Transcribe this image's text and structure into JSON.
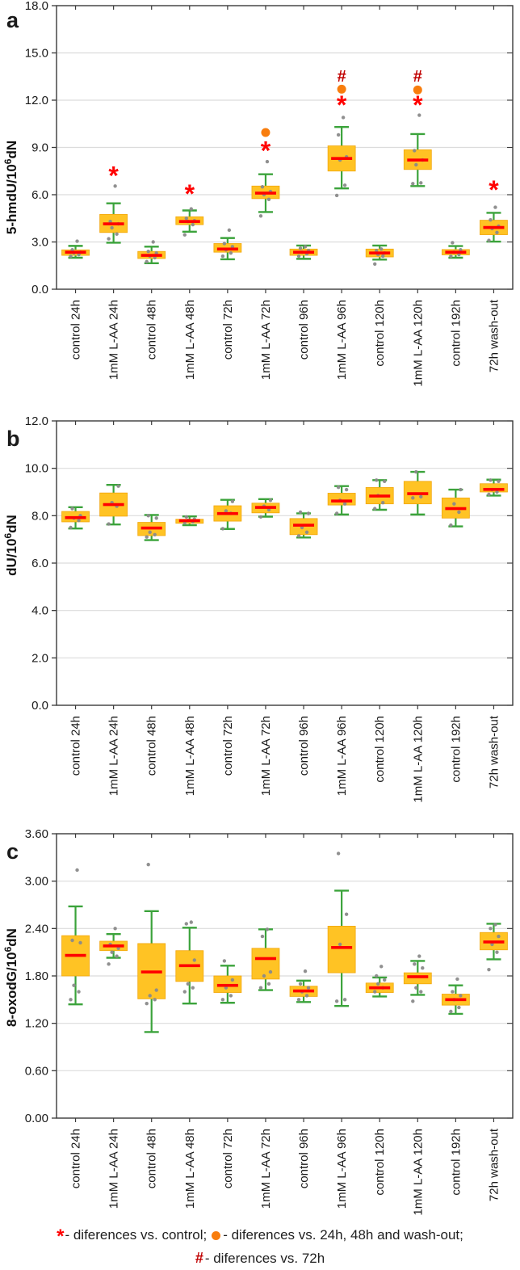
{
  "colors": {
    "box_fill": "#FFC324",
    "box_stroke": "#F2A70D",
    "whisker": "#3BA33B",
    "median": "#FF0000",
    "point": "#8A8A8A",
    "star": "#FF0000",
    "dot": "#F87D0D",
    "hash": "#C00000",
    "gridline": "#DCDCDC",
    "frame": "#3A3A3A",
    "text": "#1A1A1A"
  },
  "categories": [
    "control 24h",
    "1mM L-AA 24h",
    "control 48h",
    "1mM L-AA 48h",
    "control 72h",
    "1mM L-AA 72h",
    "control 96h",
    "1mM L-AA 96h",
    "control 120h",
    "1mM L-AA 120h",
    "control 192h",
    "72h wash-out"
  ],
  "legend": {
    "star_symbol": "*",
    "line1_part1": "- diferences vs. control;",
    "line1_part2": "- diferences vs. 24h, 48h and wash-out;",
    "hash_symbol": "#",
    "line2_text": "- diferences vs. 72h"
  },
  "chart_data": [
    {
      "type": "box",
      "panel_label": "a",
      "ylabel_base": "5-hmdU/10",
      "ylabel_sup": "6",
      "ylabel_rest": "dN",
      "ylim": [
        0,
        18
      ],
      "grid": true,
      "yticks": [
        {
          "label": "18.0",
          "value": 18
        },
        {
          "label": "15.0",
          "value": 15
        },
        {
          "label": "12.0",
          "value": 12
        },
        {
          "label": "9.0",
          "value": 9
        },
        {
          "label": "6.0",
          "value": 6
        },
        {
          "label": "3.0",
          "value": 3
        },
        {
          "label": "0.0",
          "value": 0
        }
      ],
      "boxes": [
        {
          "category": "control 24h",
          "whisker_low": 2.0,
          "q1": 2.15,
          "median": 2.35,
          "q3": 2.5,
          "whisker_high": 2.75,
          "points": [
            2.1,
            2.2,
            2.3,
            2.35,
            2.5,
            3.05
          ],
          "annotations": []
        },
        {
          "category": "1mM L-AA 24h",
          "whisker_low": 2.95,
          "q1": 3.6,
          "median": 4.15,
          "q3": 4.75,
          "whisker_high": 5.45,
          "points": [
            3.2,
            3.5,
            3.9,
            4.15,
            4.3,
            6.55
          ],
          "annotations": [
            {
              "symbol": "star",
              "value": 7.2
            }
          ]
        },
        {
          "category": "control 48h",
          "whisker_low": 1.65,
          "q1": 1.95,
          "median": 2.15,
          "q3": 2.4,
          "whisker_high": 2.7,
          "points": [
            1.75,
            2.0,
            2.1,
            2.3,
            2.4,
            3.0
          ],
          "annotations": []
        },
        {
          "category": "1mM L-AA 48h",
          "whisker_low": 3.65,
          "q1": 4.1,
          "median": 4.3,
          "q3": 4.6,
          "whisker_high": 5.0,
          "points": [
            3.45,
            4.1,
            4.3,
            4.35,
            4.5,
            5.1
          ],
          "annotations": [
            {
              "symbol": "star",
              "value": 6.05
            }
          ]
        },
        {
          "category": "control 72h",
          "whisker_low": 1.9,
          "q1": 2.35,
          "median": 2.55,
          "q3": 2.9,
          "whisker_high": 3.25,
          "points": [
            2.1,
            2.3,
            2.5,
            2.7,
            2.9,
            3.75
          ],
          "annotations": []
        },
        {
          "category": "1mM L-AA 72h",
          "whisker_low": 4.9,
          "q1": 5.75,
          "median": 6.1,
          "q3": 6.55,
          "whisker_high": 7.3,
          "points": [
            4.65,
            5.7,
            6.0,
            6.2,
            6.5,
            8.1
          ],
          "annotations": [
            {
              "symbol": "star",
              "value": 8.8
            },
            {
              "symbol": "dot",
              "value": 9.95
            }
          ]
        },
        {
          "category": "control 96h",
          "whisker_low": 1.93,
          "q1": 2.15,
          "median": 2.35,
          "q3": 2.55,
          "whisker_high": 2.77,
          "points": [
            2.1,
            2.25,
            2.35,
            2.45,
            2.6,
            2.7
          ],
          "annotations": []
        },
        {
          "category": "1mM L-AA 96h",
          "whisker_low": 6.4,
          "q1": 7.5,
          "median": 8.3,
          "q3": 9.1,
          "whisker_high": 10.3,
          "points": [
            5.95,
            6.6,
            8.2,
            8.4,
            9.8,
            10.9
          ],
          "annotations": [
            {
              "symbol": "star",
              "value": 11.7
            },
            {
              "symbol": "dot",
              "value": 12.7
            },
            {
              "symbol": "hash",
              "value": 13.55
            }
          ]
        },
        {
          "category": "control 120h",
          "whisker_low": 1.88,
          "q1": 2.05,
          "median": 2.3,
          "q3": 2.55,
          "whisker_high": 2.77,
          "points": [
            1.6,
            2.1,
            2.2,
            2.3,
            2.45,
            2.55
          ],
          "annotations": []
        },
        {
          "category": "1mM L-AA 120h",
          "whisker_low": 6.55,
          "q1": 7.6,
          "median": 8.2,
          "q3": 8.85,
          "whisker_high": 9.85,
          "points": [
            6.7,
            6.75,
            7.9,
            8.2,
            8.8,
            11.05
          ],
          "annotations": [
            {
              "symbol": "star",
              "value": 11.7
            },
            {
              "symbol": "dot",
              "value": 12.65
            },
            {
              "symbol": "hash",
              "value": 13.55
            }
          ]
        },
        {
          "category": "control 192h",
          "whisker_low": 2.0,
          "q1": 2.18,
          "median": 2.35,
          "q3": 2.52,
          "whisker_high": 2.74,
          "points": [
            2.1,
            2.2,
            2.35,
            2.5,
            2.95
          ],
          "annotations": []
        },
        {
          "category": "72h wash-out",
          "whisker_low": 3.02,
          "q1": 3.46,
          "median": 3.92,
          "q3": 4.38,
          "whisker_high": 4.85,
          "points": [
            3.1,
            3.6,
            3.85,
            4.0,
            4.4,
            5.2
          ],
          "annotations": [
            {
              "symbol": "star",
              "value": 6.3
            }
          ]
        }
      ]
    },
    {
      "type": "box",
      "panel_label": "b",
      "ylabel_base": "dU/10",
      "ylabel_sup": "6",
      "ylabel_rest": "dN",
      "ylim": [
        0,
        12
      ],
      "grid": true,
      "yticks": [
        {
          "label": "12.0",
          "value": 12
        },
        {
          "label": "10.0",
          "value": 10
        },
        {
          "label": "8.0",
          "value": 8
        },
        {
          "label": "6.0",
          "value": 6
        },
        {
          "label": "4.0",
          "value": 4
        },
        {
          "label": "2.0",
          "value": 2
        },
        {
          "label": "0.0",
          "value": 0
        }
      ],
      "boxes": [
        {
          "category": "control 24h",
          "whisker_low": 7.46,
          "q1": 7.74,
          "median": 7.92,
          "q3": 8.18,
          "whisker_high": 8.36,
          "points": [
            7.5,
            7.8,
            7.9,
            8.0,
            8.3
          ],
          "annotations": []
        },
        {
          "category": "1mM L-AA 24h",
          "whisker_low": 7.63,
          "q1": 7.98,
          "median": 8.47,
          "q3": 8.96,
          "whisker_high": 9.3,
          "points": [
            7.65,
            8.4,
            8.55,
            9.25
          ],
          "annotations": []
        },
        {
          "category": "control 48h",
          "whisker_low": 6.97,
          "q1": 7.16,
          "median": 7.48,
          "q3": 7.72,
          "whisker_high": 8.03,
          "points": [
            7.1,
            7.2,
            7.3,
            7.9,
            8.0
          ],
          "annotations": []
        },
        {
          "category": "1mM L-AA 48h",
          "whisker_low": 7.6,
          "q1": 7.68,
          "median": 7.79,
          "q3": 7.85,
          "whisker_high": 7.97,
          "points": [
            7.7,
            7.75,
            7.8,
            7.85,
            7.95
          ],
          "annotations": []
        },
        {
          "category": "control 72h",
          "whisker_low": 7.44,
          "q1": 7.77,
          "median": 8.09,
          "q3": 8.42,
          "whisker_high": 8.67,
          "points": [
            7.45,
            8.1,
            8.2,
            8.6
          ],
          "annotations": []
        },
        {
          "category": "1mM L-AA 72h",
          "whisker_low": 7.96,
          "q1": 8.12,
          "median": 8.35,
          "q3": 8.53,
          "whisker_high": 8.7,
          "points": [
            7.95,
            8.25,
            8.4,
            8.65
          ],
          "annotations": []
        },
        {
          "category": "control 96h",
          "whisker_low": 7.08,
          "q1": 7.2,
          "median": 7.6,
          "q3": 7.88,
          "whisker_high": 8.1,
          "points": [
            7.15,
            7.3,
            7.5,
            8.1,
            8.15
          ],
          "annotations": []
        },
        {
          "category": "1mM L-AA 96h",
          "whisker_low": 8.05,
          "q1": 8.45,
          "median": 8.62,
          "q3": 8.95,
          "whisker_high": 9.25,
          "points": [
            8.1,
            8.5,
            8.65,
            9.1,
            9.2
          ],
          "annotations": []
        },
        {
          "category": "control 120h",
          "whisker_low": 8.25,
          "q1": 8.5,
          "median": 8.83,
          "q3": 9.19,
          "whisker_high": 9.5,
          "points": [
            8.3,
            8.55,
            8.85,
            9.45,
            9.5
          ],
          "annotations": []
        },
        {
          "category": "1mM L-AA 120h",
          "whisker_low": 8.05,
          "q1": 8.5,
          "median": 8.93,
          "q3": 9.45,
          "whisker_high": 9.85,
          "points": [
            8.75,
            8.8,
            9.85
          ],
          "annotations": []
        },
        {
          "category": "control 192h",
          "whisker_low": 7.55,
          "q1": 7.9,
          "median": 8.3,
          "q3": 8.75,
          "whisker_high": 9.1,
          "points": [
            7.6,
            8.15,
            8.5,
            9.1
          ],
          "annotations": []
        },
        {
          "category": "72h wash-out",
          "whisker_low": 8.85,
          "q1": 9.0,
          "median": 9.11,
          "q3": 9.35,
          "whisker_high": 9.52,
          "points": [
            8.9,
            9.0,
            9.1,
            9.45,
            9.5
          ],
          "annotations": []
        }
      ]
    },
    {
      "type": "box",
      "panel_label": "c",
      "ylabel_base": "8-oxodG/10",
      "ylabel_sup": "6",
      "ylabel_rest": "dN",
      "ylim": [
        0,
        3.6
      ],
      "grid": true,
      "yticks": [
        {
          "label": "3.60",
          "value": 3.6
        },
        {
          "label": "3.00",
          "value": 3.0
        },
        {
          "label": "2.40",
          "value": 2.4
        },
        {
          "label": "1.80",
          "value": 1.8
        },
        {
          "label": "1.20",
          "value": 1.2
        },
        {
          "label": "0.60",
          "value": 0.6
        },
        {
          "label": "0.00",
          "value": 0
        }
      ],
      "boxes": [
        {
          "category": "control 24h",
          "whisker_low": 1.44,
          "q1": 1.8,
          "median": 2.06,
          "q3": 2.31,
          "whisker_high": 2.68,
          "points": [
            1.5,
            1.6,
            1.68,
            2.22,
            2.25,
            3.14
          ],
          "annotations": []
        },
        {
          "category": "1mM L-AA 24h",
          "whisker_low": 2.03,
          "q1": 2.12,
          "median": 2.18,
          "q3": 2.24,
          "whisker_high": 2.33,
          "points": [
            1.95,
            2.05,
            2.1,
            2.15,
            2.2,
            2.4
          ],
          "annotations": []
        },
        {
          "category": "control 48h",
          "whisker_low": 1.09,
          "q1": 1.51,
          "median": 1.85,
          "q3": 2.21,
          "whisker_high": 2.62,
          "points": [
            1.45,
            1.5,
            1.55,
            1.62,
            3.21
          ],
          "annotations": []
        },
        {
          "category": "1mM L-AA 48h",
          "whisker_low": 1.45,
          "q1": 1.73,
          "median": 1.93,
          "q3": 2.12,
          "whisker_high": 2.41,
          "points": [
            1.6,
            1.65,
            1.7,
            2.0,
            2.46,
            2.48
          ],
          "annotations": []
        },
        {
          "category": "control 72h",
          "whisker_low": 1.46,
          "q1": 1.59,
          "median": 1.68,
          "q3": 1.8,
          "whisker_high": 1.93,
          "points": [
            1.5,
            1.55,
            1.65,
            1.75,
            1.99
          ],
          "annotations": []
        },
        {
          "category": "1mM L-AA 72h",
          "whisker_low": 1.62,
          "q1": 1.76,
          "median": 2.02,
          "q3": 2.15,
          "whisker_high": 2.39,
          "points": [
            1.65,
            1.7,
            1.8,
            1.85,
            2.3,
            2.39
          ],
          "annotations": []
        },
        {
          "category": "control 96h",
          "whisker_low": 1.47,
          "q1": 1.54,
          "median": 1.61,
          "q3": 1.67,
          "whisker_high": 1.74,
          "points": [
            1.5,
            1.55,
            1.6,
            1.65,
            1.7,
            1.86
          ],
          "annotations": []
        },
        {
          "category": "1mM L-AA 96h",
          "whisker_low": 1.42,
          "q1": 1.84,
          "median": 2.16,
          "q3": 2.43,
          "whisker_high": 2.88,
          "points": [
            1.48,
            1.5,
            2.2,
            2.58,
            3.35
          ],
          "annotations": []
        },
        {
          "category": "control 120h",
          "whisker_low": 1.54,
          "q1": 1.59,
          "median": 1.65,
          "q3": 1.71,
          "whisker_high": 1.78,
          "points": [
            1.6,
            1.65,
            1.7,
            1.75,
            1.8,
            1.92
          ],
          "annotations": []
        },
        {
          "category": "1mM L-AA 120h",
          "whisker_low": 1.56,
          "q1": 1.7,
          "median": 1.79,
          "q3": 1.84,
          "whisker_high": 1.99,
          "points": [
            1.48,
            1.6,
            1.65,
            1.9,
            1.95,
            2.05
          ],
          "annotations": []
        },
        {
          "category": "control 192h",
          "whisker_low": 1.32,
          "q1": 1.43,
          "median": 1.5,
          "q3": 1.57,
          "whisker_high": 1.68,
          "points": [
            1.35,
            1.4,
            1.5,
            1.55,
            1.6,
            1.76
          ],
          "annotations": []
        },
        {
          "category": "72h wash-out",
          "whisker_low": 2.01,
          "q1": 2.13,
          "median": 2.23,
          "q3": 2.35,
          "whisker_high": 2.46,
          "points": [
            1.88,
            2.1,
            2.2,
            2.3,
            2.4,
            2.45
          ],
          "annotations": []
        }
      ]
    }
  ]
}
